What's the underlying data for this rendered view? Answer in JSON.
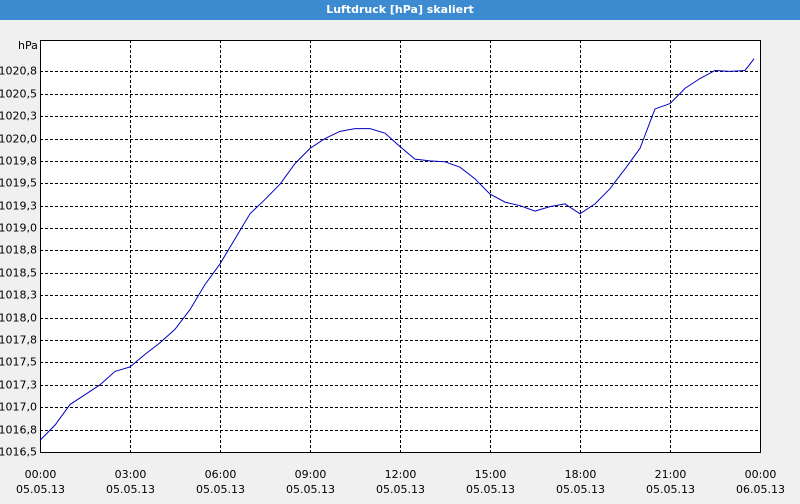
{
  "chart_data": {
    "type": "line",
    "title": "Luftdruck [hPa] skaliert",
    "y_label": "hPa",
    "x": [
      0,
      0.5,
      1,
      1.5,
      2,
      2.5,
      3,
      3.5,
      4,
      4.5,
      5,
      5.5,
      6,
      6.5,
      7,
      7.5,
      8,
      8.5,
      9,
      9.5,
      10,
      10.5,
      11,
      11.5,
      12,
      12.5,
      13,
      13.5,
      14,
      14.5,
      15,
      15.5,
      16,
      16.5,
      17,
      17.5,
      18,
      18.5,
      19,
      19.5,
      20,
      20.5,
      21,
      21.5,
      22,
      22.5,
      23,
      23.5,
      23.8
    ],
    "series": [
      {
        "name": "Luftdruck",
        "color": "#0000c0",
        "values": [
          1016.63,
          1016.8,
          1017.03,
          1017.14,
          1017.25,
          1017.4,
          1017.45,
          1017.59,
          1017.72,
          1017.87,
          1018.09,
          1018.37,
          1018.6,
          1018.88,
          1019.16,
          1019.32,
          1019.49,
          1019.72,
          1019.89,
          1020.0,
          1020.08,
          1020.11,
          1020.11,
          1020.06,
          1019.91,
          1019.77,
          1019.75,
          1019.74,
          1019.68,
          1019.55,
          1019.38,
          1019.29,
          1019.25,
          1019.19,
          1019.24,
          1019.27,
          1019.16,
          1019.27,
          1019.44,
          1019.66,
          1019.89,
          1020.33,
          1020.39,
          1020.56,
          1020.67,
          1020.76,
          1020.75,
          1020.76,
          1020.89
        ]
      }
    ],
    "xlim": [
      0,
      24
    ],
    "xticks": [
      {
        "value": 0,
        "label": "00:00"
      },
      {
        "value": 3,
        "label": "03:00"
      },
      {
        "value": 6,
        "label": "06:00"
      },
      {
        "value": 9,
        "label": "09:00"
      },
      {
        "value": 12,
        "label": "12:00"
      },
      {
        "value": 15,
        "label": "15:00"
      },
      {
        "value": 18,
        "label": "18:00"
      },
      {
        "value": 21,
        "label": "21:00"
      },
      {
        "value": 24,
        "label": "00:00"
      }
    ],
    "xtick_dates": [
      "05.05.13",
      "05.05.13",
      "05.05.13",
      "05.05.13",
      "05.05.13",
      "05.05.13",
      "05.05.13",
      "05.05.13",
      "06.05.13"
    ],
    "ylim": [
      1016.5,
      1021.1
    ],
    "yticks": [
      {
        "value": 1016.5,
        "label": "1016,5"
      },
      {
        "value": 1016.75,
        "label": "1016,8"
      },
      {
        "value": 1017,
        "label": "1017,0"
      },
      {
        "value": 1017.25,
        "label": "1017,3"
      },
      {
        "value": 1017.5,
        "label": "1017,5"
      },
      {
        "value": 1017.75,
        "label": "1017,8"
      },
      {
        "value": 1018,
        "label": "1018,0"
      },
      {
        "value": 1018.25,
        "label": "1018,3"
      },
      {
        "value": 1018.5,
        "label": "1018,5"
      },
      {
        "value": 1018.75,
        "label": "1018,8"
      },
      {
        "value": 1019,
        "label": "1019,0"
      },
      {
        "value": 1019.25,
        "label": "1019,3"
      },
      {
        "value": 1019.5,
        "label": "1019,5"
      },
      {
        "value": 1019.75,
        "label": "1019,8"
      },
      {
        "value": 1020,
        "label": "1020,0"
      },
      {
        "value": 1020.25,
        "label": "1020,3"
      },
      {
        "value": 1020.5,
        "label": "1020,5"
      },
      {
        "value": 1020.75,
        "label": "1020,8"
      }
    ],
    "grid": true
  }
}
